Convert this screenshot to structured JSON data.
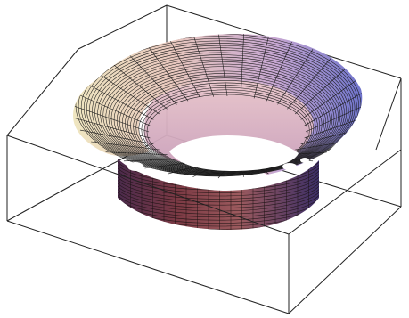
{
  "figure": {
    "kind": "3d-surface-plot",
    "description_visible_text": [],
    "colors": {
      "background": "#ffffff",
      "box_lines": "#222222",
      "mesh_lines": "#1a1a1a",
      "face_front_light": "#e9c9b4",
      "face_left_cream": "#efe6c2",
      "face_right_blue": "#7d7fc9",
      "interior_pink": "#dcb7c7",
      "inner_shadow_dark": "#3a2430",
      "inner_mid_red": "#8a4e5a",
      "inner_purple": "#6c4f86"
    }
  }
}
